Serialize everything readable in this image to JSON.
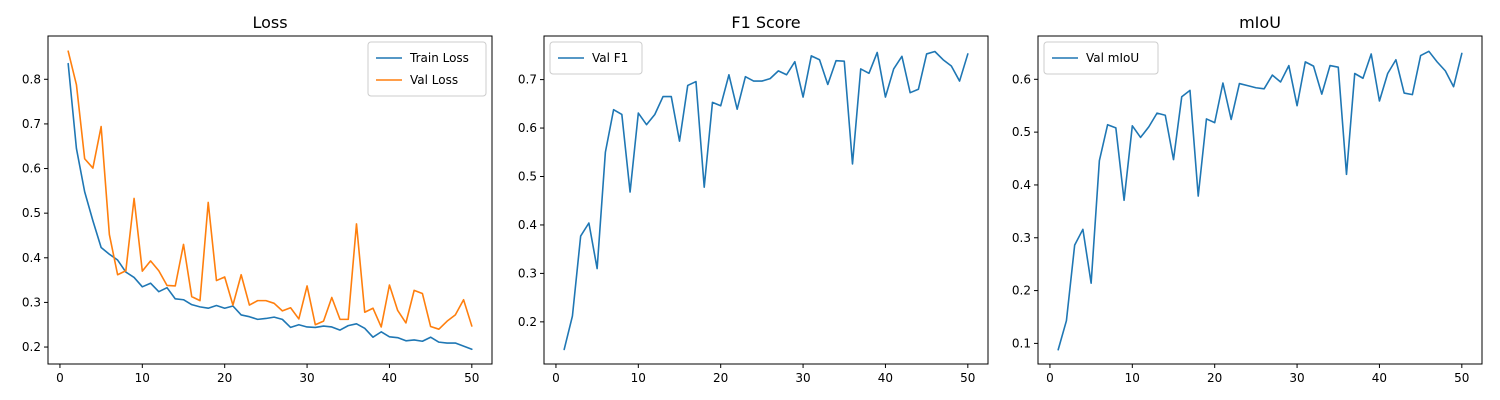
{
  "chart_data": [
    {
      "type": "line",
      "title": "Loss",
      "xlabel": "",
      "ylabel": "",
      "xlim": [
        -1.45,
        52.45
      ],
      "ylim": [
        0.162,
        0.897
      ],
      "xticks": [
        0,
        10,
        20,
        30,
        40,
        50
      ],
      "yticks": [
        0.2,
        0.3,
        0.4,
        0.5,
        0.6,
        0.7,
        0.8
      ],
      "xtick_labels": [
        "0",
        "10",
        "20",
        "30",
        "40",
        "50"
      ],
      "ytick_labels": [
        "0.2",
        "0.3",
        "0.4",
        "0.5",
        "0.6",
        "0.7",
        "0.8"
      ],
      "grid": false,
      "legend": "upper right",
      "x": [
        1,
        2,
        3,
        4,
        5,
        6,
        7,
        8,
        9,
        10,
        11,
        12,
        13,
        14,
        15,
        16,
        17,
        18,
        19,
        20,
        21,
        22,
        23,
        24,
        25,
        26,
        27,
        28,
        29,
        30,
        31,
        32,
        33,
        34,
        35,
        36,
        37,
        38,
        39,
        40,
        41,
        42,
        43,
        44,
        45,
        46,
        47,
        48,
        49,
        50
      ],
      "series": [
        {
          "name": "Train Loss",
          "color": "#1f77b4",
          "values": [
            0.835,
            0.645,
            0.548,
            0.483,
            0.423,
            0.408,
            0.395,
            0.368,
            0.356,
            0.335,
            0.343,
            0.324,
            0.333,
            0.308,
            0.306,
            0.295,
            0.29,
            0.287,
            0.293,
            0.287,
            0.292,
            0.272,
            0.268,
            0.262,
            0.264,
            0.267,
            0.262,
            0.244,
            0.25,
            0.245,
            0.244,
            0.247,
            0.245,
            0.238,
            0.248,
            0.252,
            0.242,
            0.222,
            0.234,
            0.223,
            0.221,
            0.214,
            0.216,
            0.213,
            0.222,
            0.211,
            0.209,
            0.209,
            0.202,
            0.195
          ]
        },
        {
          "name": "Val Loss",
          "color": "#ff7f0e",
          "values": [
            0.863,
            0.788,
            0.622,
            0.601,
            0.694,
            0.452,
            0.362,
            0.371,
            0.533,
            0.37,
            0.393,
            0.371,
            0.338,
            0.337,
            0.43,
            0.313,
            0.304,
            0.524,
            0.349,
            0.357,
            0.294,
            0.362,
            0.294,
            0.304,
            0.304,
            0.298,
            0.281,
            0.288,
            0.263,
            0.337,
            0.25,
            0.258,
            0.311,
            0.262,
            0.262,
            0.476,
            0.278,
            0.287,
            0.245,
            0.339,
            0.282,
            0.254,
            0.327,
            0.32,
            0.246,
            0.24,
            0.258,
            0.272,
            0.306,
            0.247
          ]
        }
      ]
    },
    {
      "type": "line",
      "title": "F1 Score",
      "xlabel": "",
      "ylabel": "",
      "xlim": [
        -1.45,
        52.45
      ],
      "ylim": [
        0.113,
        0.79
      ],
      "xticks": [
        0,
        10,
        20,
        30,
        40,
        50
      ],
      "yticks": [
        0.2,
        0.3,
        0.4,
        0.5,
        0.6,
        0.7
      ],
      "xtick_labels": [
        "0",
        "10",
        "20",
        "30",
        "40",
        "50"
      ],
      "ytick_labels": [
        "0.2",
        "0.3",
        "0.4",
        "0.5",
        "0.6",
        "0.7"
      ],
      "grid": false,
      "legend": "upper left",
      "x": [
        1,
        2,
        3,
        4,
        5,
        6,
        7,
        8,
        9,
        10,
        11,
        12,
        13,
        14,
        15,
        16,
        17,
        18,
        19,
        20,
        21,
        22,
        23,
        24,
        25,
        26,
        27,
        28,
        29,
        30,
        31,
        32,
        33,
        34,
        35,
        36,
        37,
        38,
        39,
        40,
        41,
        42,
        43,
        44,
        45,
        46,
        47,
        48,
        49,
        50
      ],
      "series": [
        {
          "name": "Val F1",
          "color": "#1f77b4",
          "values": [
            0.143,
            0.212,
            0.377,
            0.404,
            0.31,
            0.55,
            0.638,
            0.628,
            0.468,
            0.631,
            0.607,
            0.628,
            0.665,
            0.665,
            0.573,
            0.688,
            0.696,
            0.478,
            0.653,
            0.646,
            0.71,
            0.639,
            0.706,
            0.697,
            0.697,
            0.702,
            0.718,
            0.71,
            0.737,
            0.664,
            0.749,
            0.741,
            0.69,
            0.739,
            0.738,
            0.526,
            0.722,
            0.713,
            0.756,
            0.664,
            0.722,
            0.748,
            0.673,
            0.68,
            0.753,
            0.758,
            0.741,
            0.728,
            0.697,
            0.753
          ]
        }
      ]
    },
    {
      "type": "line",
      "title": "mIoU",
      "xlabel": "",
      "ylabel": "",
      "xlim": [
        -1.45,
        52.45
      ],
      "ylim": [
        0.061,
        0.682
      ],
      "xticks": [
        0,
        10,
        20,
        30,
        40,
        50
      ],
      "yticks": [
        0.1,
        0.2,
        0.3,
        0.4,
        0.5,
        0.6
      ],
      "xtick_labels": [
        "0",
        "10",
        "20",
        "30",
        "40",
        "50"
      ],
      "ytick_labels": [
        "0.1",
        "0.2",
        "0.3",
        "0.4",
        "0.5",
        "0.6"
      ],
      "grid": false,
      "legend": "upper left",
      "x": [
        1,
        2,
        3,
        4,
        5,
        6,
        7,
        8,
        9,
        10,
        11,
        12,
        13,
        14,
        15,
        16,
        17,
        18,
        19,
        20,
        21,
        22,
        23,
        24,
        25,
        26,
        27,
        28,
        29,
        30,
        31,
        32,
        33,
        34,
        35,
        36,
        37,
        38,
        39,
        40,
        41,
        42,
        43,
        44,
        45,
        46,
        47,
        48,
        49,
        50
      ],
      "series": [
        {
          "name": "Val mIoU",
          "color": "#1f77b4",
          "values": [
            0.088,
            0.143,
            0.286,
            0.316,
            0.214,
            0.446,
            0.514,
            0.508,
            0.371,
            0.512,
            0.49,
            0.51,
            0.536,
            0.532,
            0.448,
            0.567,
            0.579,
            0.379,
            0.525,
            0.518,
            0.593,
            0.524,
            0.592,
            0.588,
            0.584,
            0.582,
            0.608,
            0.595,
            0.626,
            0.55,
            0.633,
            0.625,
            0.572,
            0.626,
            0.623,
            0.42,
            0.611,
            0.602,
            0.648,
            0.559,
            0.611,
            0.637,
            0.574,
            0.571,
            0.645,
            0.653,
            0.633,
            0.616,
            0.586,
            0.649
          ]
        }
      ]
    }
  ]
}
